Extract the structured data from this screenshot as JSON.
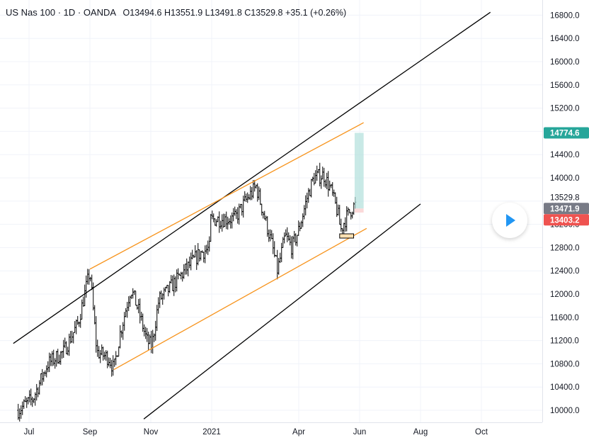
{
  "legend": {
    "symbol": "US Nas 100 · 1D · OANDA",
    "open": "O13494.6",
    "high": "H13551.9",
    "low": "L13491.8",
    "close": "C13529.8",
    "change": "+35.1 (+0.26%)"
  },
  "colors": {
    "up_label": "#26a69a",
    "down_label": "#ef5350",
    "last_price_label": "#787b86",
    "channel_outer": "#000000",
    "channel_inner": "#f7941d",
    "target_zone": "#b2dfdb",
    "stop_zone": "#fbd5d5",
    "bars": "#000000"
  },
  "chart_data": {
    "type": "ohlc",
    "symbol": "US Nas 100",
    "interval": "1D",
    "source": "OANDA",
    "y_range": [
      9800,
      16900
    ],
    "y_ticks": [
      "10000.0",
      "10400.0",
      "10800.0",
      "11200.0",
      "11600.0",
      "12000.0",
      "12400.0",
      "12800.0",
      "13200.0",
      "13600.0",
      "14000.0",
      "14400.0",
      "14800.0",
      "15200.0",
      "15600.0",
      "16000.0",
      "16400.0",
      "16800.0"
    ],
    "x_ticks": [
      "Jul",
      "Sep",
      "Nov",
      "2021",
      "Apr",
      "Jun",
      "Aug",
      "Oct"
    ],
    "price_labels": [
      {
        "text": "14774.6",
        "value": 14774.6,
        "kind": "target"
      },
      {
        "text": "13529.8",
        "value": 13529.8,
        "kind": "current"
      },
      {
        "text": "13471.9",
        "value": 13471.9,
        "kind": "entry"
      },
      {
        "text": "13403.2",
        "value": 13403.2,
        "kind": "stop"
      }
    ],
    "series_path": [
      [
        "Jun 20",
        10000
      ],
      [
        "Jul 05",
        10200
      ],
      [
        "Jul 20",
        10800
      ],
      [
        "Aug 05",
        11000
      ],
      [
        "Aug 20",
        11500
      ],
      [
        "Sep 01",
        12400
      ],
      [
        "Sep 08",
        11000
      ],
      [
        "Sep 20",
        10900
      ],
      [
        "Sep 25",
        10700
      ],
      [
        "Oct 01",
        11300
      ],
      [
        "Oct 12",
        12100
      ],
      [
        "Oct 20",
        11700
      ],
      [
        "Oct 28",
        11200
      ],
      [
        "Nov 02",
        11100
      ],
      [
        "Nov 09",
        11900
      ],
      [
        "Nov 15",
        12000
      ],
      [
        "Nov 25",
        12200
      ],
      [
        "Dec 05",
        12400
      ],
      [
        "Dec 20",
        12700
      ],
      [
        "Dec 31",
        12800
      ],
      [
        "Jan 10",
        13000
      ],
      [
        "Jan 25",
        13300
      ],
      [
        "Feb 05",
        13600
      ],
      [
        "Feb 16",
        13850
      ],
      [
        "Feb 25",
        13300
      ],
      [
        "Mar 05",
        12800
      ],
      [
        "Mar 10",
        12400
      ],
      [
        "Mar 18",
        13000
      ],
      [
        "Mar 25",
        12800
      ],
      [
        "Apr 01",
        13100
      ],
      [
        "Apr 10",
        13700
      ],
      [
        "Apr 16",
        14000
      ],
      [
        "Apr 26",
        14050
      ],
      [
        "May 03",
        13800
      ],
      [
        "May 10",
        13400
      ],
      [
        "May 13",
        13100
      ],
      [
        "May 18",
        13300
      ],
      [
        "May 25",
        13500
      ],
      [
        "May 28",
        13530
      ]
    ],
    "drawings": {
      "outer_channel": [
        {
          "from": [
            "Jun 15",
            11150
          ],
          "to": [
            "Oct 10",
            16850
          ]
        },
        {
          "from": [
            "Oct 25",
            9850
          ],
          "to": [
            "Aug 01",
            13550
          ]
        }
      ],
      "inner_channel": [
        {
          "from": [
            "Sep 01",
            12430
          ],
          "to": [
            "Jun 05",
            14950
          ]
        },
        {
          "from": [
            "Sep 25",
            10700
          ],
          "to": [
            "Jun 08",
            13130
          ]
        }
      ],
      "long_position": {
        "entry": 13471.9,
        "target": 14774.6,
        "stop": 13403.2
      }
    },
    "grid": true
  }
}
